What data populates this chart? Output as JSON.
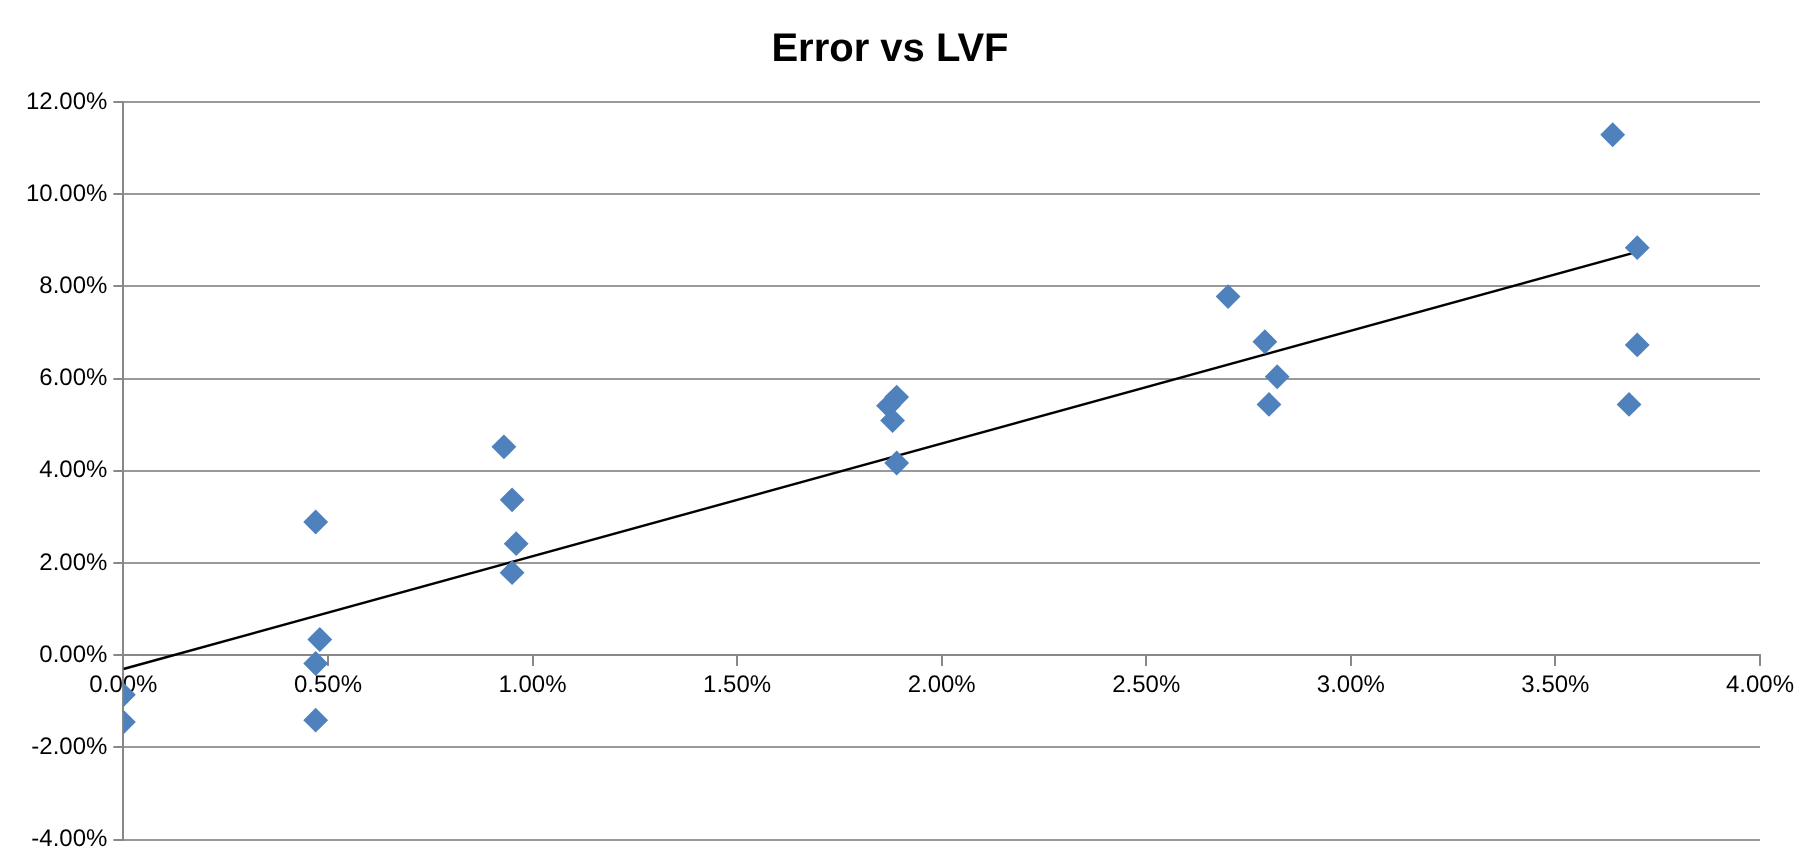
{
  "chart_data": {
    "type": "scatter",
    "title": "Error vs LVF",
    "xlim": [
      0,
      4
    ],
    "xticks": [
      {
        "value": 0,
        "label": "0.00%"
      },
      {
        "value": 0.5,
        "label": "0.50%"
      },
      {
        "value": 1,
        "label": "1.00%"
      },
      {
        "value": 1.5,
        "label": "1.50%"
      },
      {
        "value": 2,
        "label": "2.00%"
      },
      {
        "value": 2.5,
        "label": "2.50%"
      },
      {
        "value": 3,
        "label": "3.00%"
      },
      {
        "value": 3.5,
        "label": "3.50%"
      },
      {
        "value": 4,
        "label": "4.00%"
      }
    ],
    "ylim": [
      -4,
      12
    ],
    "yticks": [
      {
        "value": -4,
        "label": "-4.00%"
      },
      {
        "value": -2,
        "label": "-2.00%"
      },
      {
        "value": 0,
        "label": "0.00%"
      },
      {
        "value": 2,
        "label": "2.00%"
      },
      {
        "value": 4,
        "label": "4.00%"
      },
      {
        "value": 6,
        "label": "6.00%"
      },
      {
        "value": 8,
        "label": "8.00%"
      },
      {
        "value": 10,
        "label": "10.00%"
      },
      {
        "value": 12,
        "label": "12.00%"
      }
    ],
    "grid": "y",
    "legend": false,
    "marker": "diamond",
    "series": [
      {
        "type": "scatter",
        "color": "#4f81bd",
        "x": [
          0,
          0,
          0.47,
          0.48,
          0.47,
          0.47,
          0.93,
          0.95,
          0.96,
          0.95,
          1.89,
          1.87,
          1.88,
          1.89,
          2.7,
          2.79,
          2.82,
          2.8,
          3.64,
          3.7,
          3.7,
          3.68
        ],
        "values": [
          -0.86,
          -1.45,
          2.89,
          0.34,
          -0.18,
          -1.41,
          4.52,
          3.37,
          2.42,
          1.79,
          5.6,
          5.41,
          5.09,
          4.17,
          7.78,
          6.8,
          6.04,
          5.44,
          11.29,
          8.84,
          6.73,
          5.44
        ]
      },
      {
        "type": "line",
        "color": "#000000",
        "marker": "none",
        "x": [
          0,
          3.7
        ],
        "values": [
          -0.3,
          8.75
        ]
      }
    ]
  }
}
